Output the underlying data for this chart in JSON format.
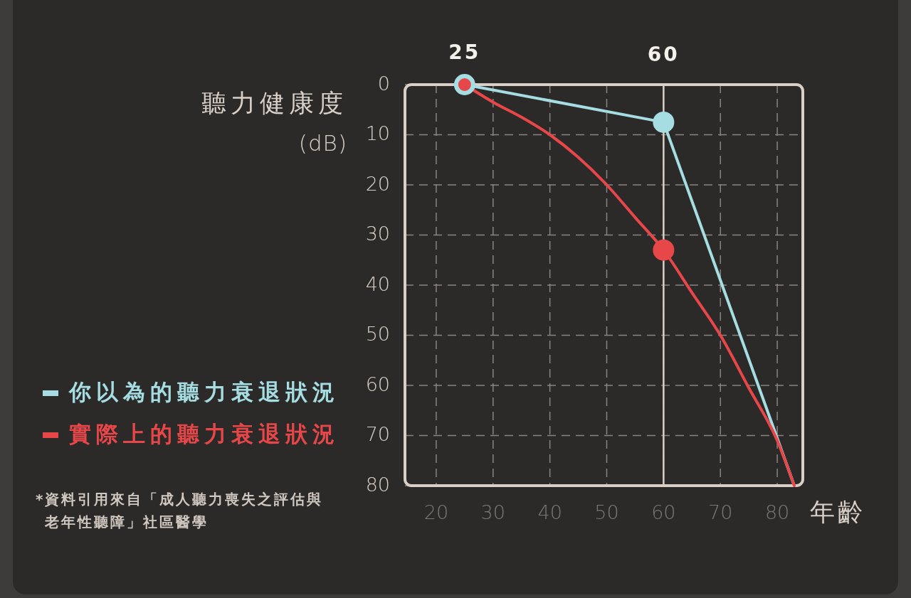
{
  "chart_data": {
    "type": "line",
    "ylabel": "聽力健康度\n(dB)",
    "xlabel": "年齡",
    "annotations": [
      {
        "text": "25",
        "x": 25,
        "y": 0
      },
      "*資料引用來自「成人聽力喪失之評估與老年性聽障」社區醫學"
    ],
    "xlim": [
      14.5,
      84.5
    ],
    "xticks": [
      20,
      30,
      40,
      50,
      60,
      70,
      80
    ],
    "ylim": [
      80,
      0
    ],
    "yticks": [
      0,
      10,
      20,
      30,
      40,
      50,
      60,
      70,
      80
    ],
    "grid": true,
    "legend": "left",
    "ref_lines": [
      {
        "axis": "x",
        "value": 60,
        "label": "60",
        "color": "#d8cfc8"
      }
    ],
    "series": [
      {
        "name": "你以為的聽力衰退狀況",
        "color": "#a6dde2",
        "x": [
          25,
          60,
          83
        ],
        "values": [
          0,
          7.5,
          80
        ]
      },
      {
        "name": "實際上的聽力衰退狀況",
        "color": "#e8474a",
        "x": [
          25,
          30,
          35,
          40,
          45,
          50,
          55,
          60,
          65,
          70,
          75,
          80,
          83
        ],
        "values": [
          0,
          3.5,
          6.5,
          10,
          14.5,
          20,
          26.5,
          33,
          41.5,
          50,
          60.5,
          71,
          80
        ]
      },
      {
        "type": "scatter",
        "color": "#a6dde2",
        "marker": "circle",
        "x": [
          25,
          60
        ],
        "values": [
          0,
          7.5
        ]
      },
      {
        "type": "scatter",
        "color": "#e8474a",
        "marker": "circle",
        "x": [
          25,
          60
        ],
        "values": [
          0,
          33
        ]
      }
    ]
  }
}
